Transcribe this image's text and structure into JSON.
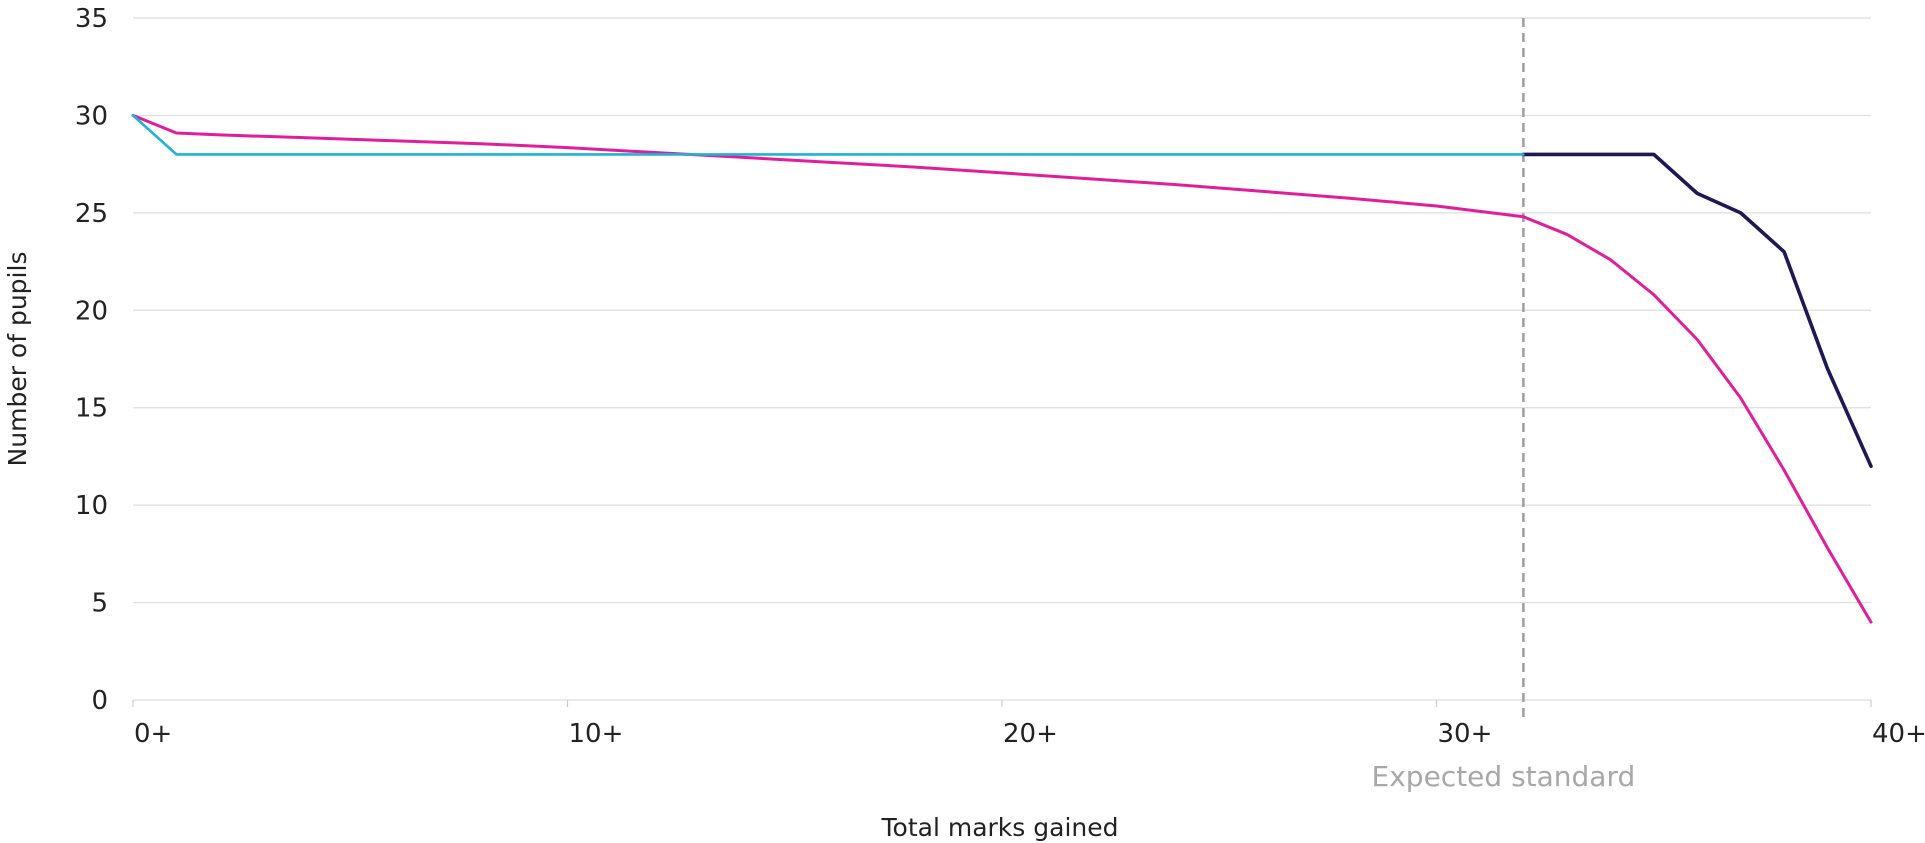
{
  "chart_data": {
    "type": "line",
    "xlabel": "Total marks gained",
    "ylabel": "Number of pupils",
    "xlim": [
      0,
      40
    ],
    "ylim": [
      0,
      35
    ],
    "grid": true,
    "x_ticks": [
      {
        "value": 0,
        "label": "0+"
      },
      {
        "value": 10,
        "label": "10+"
      },
      {
        "value": 20,
        "label": "20+"
      },
      {
        "value": 30,
        "label": "30+"
      },
      {
        "value": 40,
        "label": "40+"
      }
    ],
    "y_ticks": [
      {
        "value": 0,
        "label": "0"
      },
      {
        "value": 5,
        "label": "5"
      },
      {
        "value": 10,
        "label": "10"
      },
      {
        "value": 15,
        "label": "15"
      },
      {
        "value": 20,
        "label": "20"
      },
      {
        "value": 25,
        "label": "25"
      },
      {
        "value": 30,
        "label": "30"
      },
      {
        "value": 35,
        "label": "35"
      }
    ],
    "reference_line": {
      "x": 32,
      "label": "Expected standard",
      "color": "#9e9e9e"
    },
    "series": [
      {
        "color": "#e01e9b",
        "x": [
          0,
          1,
          2,
          4,
          6,
          8,
          10,
          12,
          14,
          16,
          18,
          20,
          22,
          24,
          26,
          28,
          30,
          32,
          33,
          34,
          35,
          36,
          37,
          38,
          39,
          40
        ],
        "values": [
          30,
          29.1,
          29.0,
          28.85,
          28.7,
          28.55,
          28.35,
          28.1,
          27.85,
          27.6,
          27.35,
          27.05,
          26.75,
          26.45,
          26.1,
          25.75,
          25.35,
          24.8,
          23.9,
          22.6,
          20.8,
          18.5,
          15.5,
          11.8,
          7.8,
          4.0
        ]
      },
      {
        "color": "#1d1955",
        "x": [
          32,
          33,
          34,
          35,
          36,
          37,
          38,
          39,
          40
        ],
        "values": [
          28,
          28,
          28,
          28,
          26,
          25,
          23,
          17,
          12
        ]
      },
      {
        "color": "#1fb3d6",
        "x": [
          0,
          1,
          2,
          4,
          6,
          8,
          10,
          12,
          14,
          16,
          18,
          20,
          22,
          24,
          26,
          28,
          30,
          32
        ],
        "values": [
          30,
          28,
          28,
          28,
          28,
          28,
          28,
          28,
          28,
          28,
          28,
          28,
          28,
          28,
          28,
          28,
          28,
          28
        ]
      }
    ]
  }
}
